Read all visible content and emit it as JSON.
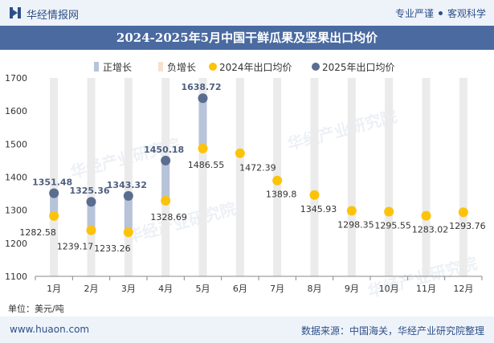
{
  "header": {
    "brand": "华经情报网",
    "slogan_left": "专业严谨",
    "slogan_right": "客观科学"
  },
  "title": "2024-2025年5月中国干鲜瓜果及坚果出口均价",
  "unit_label": "单位：美元/吨",
  "footer": {
    "site": "www.huaon.com",
    "source": "数据来源：中国海关，华经产业研究院整理"
  },
  "watermark": "华经产业研究院",
  "colors": {
    "background_bar": "#ebebeb",
    "positive_bar": "#b7c3d9",
    "series_2024": "#fcc30b",
    "series_2025": "#5a6d8e",
    "header_bg": "#4a6aa0",
    "brand_text": "#2d4f86"
  },
  "chart_data": {
    "type": "line",
    "categories": [
      "1月",
      "2月",
      "3月",
      "4月",
      "5月",
      "6月",
      "7月",
      "8月",
      "9月",
      "10月",
      "11月",
      "12月"
    ],
    "legend": [
      "正增长",
      "负增长",
      "2024年出口均价",
      "2025年出口均价"
    ],
    "series": [
      {
        "name": "2024年出口均价",
        "values": [
          1282.58,
          1239.17,
          1233.26,
          1328.69,
          1486.55,
          1472.39,
          1389.8,
          1345.93,
          1298.35,
          1295.55,
          1283.02,
          1293.76
        ]
      },
      {
        "name": "2025年出口均价",
        "values": [
          1351.48,
          1325.36,
          1343.32,
          1450.18,
          1638.72,
          null,
          null,
          null,
          null,
          null,
          null,
          null
        ]
      }
    ],
    "labels_2024": [
      "1282.58",
      "1239.17",
      "1233.26",
      "1328.69",
      "1486.55",
      "1472.39",
      "1389.8",
      "1345.93",
      "1298.35",
      "1295.55",
      "1283.02",
      "1293.76"
    ],
    "labels_2025": [
      "1351.48",
      "1325.36",
      "1343.32",
      "1450.18",
      "1638.72"
    ],
    "ylim": [
      1100,
      1700
    ],
    "yticks": [
      "1100",
      "1200",
      "1300",
      "1400",
      "1500",
      "1600",
      "1700"
    ],
    "ylabel": "美元/吨",
    "xlabel": ""
  }
}
